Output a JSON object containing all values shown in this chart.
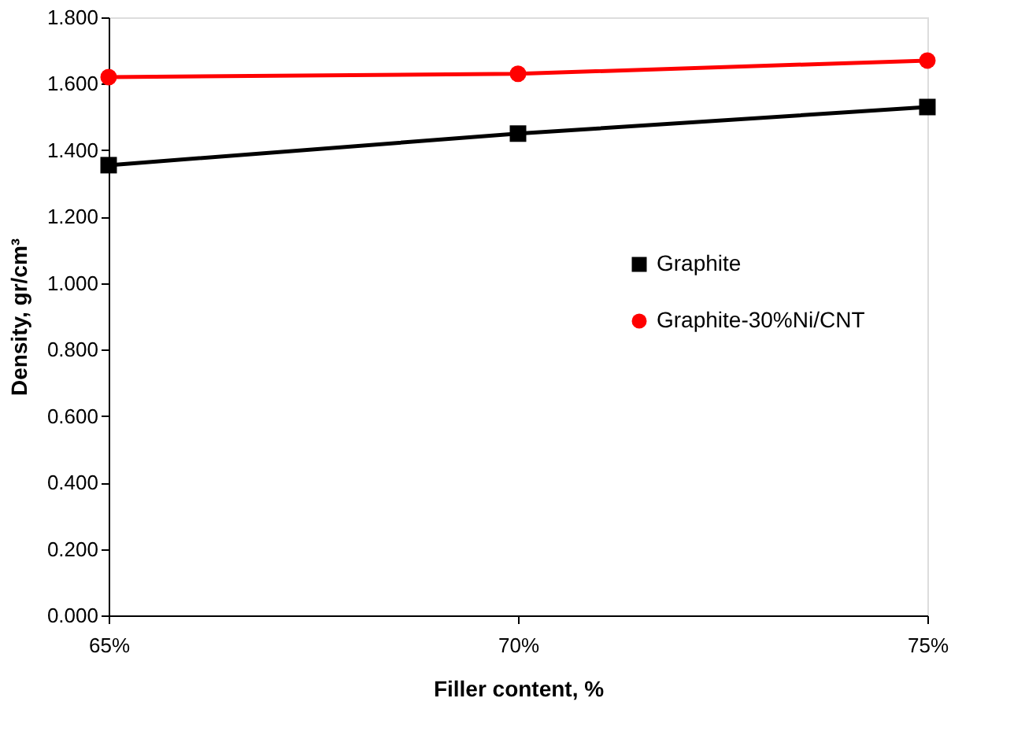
{
  "chart_data": {
    "type": "line",
    "xlabel": "Filler content, %",
    "ylabel": "Density, gr/cm³",
    "categories": [
      "65%",
      "70%",
      "75%"
    ],
    "series": [
      {
        "name": "Graphite",
        "color": "#000000",
        "marker": "square",
        "values": [
          1.355,
          1.45,
          1.53
        ]
      },
      {
        "name": "Graphite-30%Ni/CNT",
        "color": "#ff0000",
        "marker": "circle",
        "values": [
          1.62,
          1.63,
          1.67
        ]
      }
    ],
    "ylim": [
      0,
      1.8
    ],
    "yticks": [
      {
        "value": 0,
        "label": "0.000"
      },
      {
        "value": 0.2,
        "label": "0.200"
      },
      {
        "value": 0.4,
        "label": "0.400"
      },
      {
        "value": 0.6,
        "label": "0.600"
      },
      {
        "value": 0.8,
        "label": "0.800"
      },
      {
        "value": 1.0,
        "label": "1.000"
      },
      {
        "value": 1.2,
        "label": "1.200"
      },
      {
        "value": 1.4,
        "label": "1.400"
      },
      {
        "value": 1.6,
        "label": "1.600"
      },
      {
        "value": 1.8,
        "label": "1.800"
      }
    ],
    "grid": false,
    "legend": "right"
  }
}
